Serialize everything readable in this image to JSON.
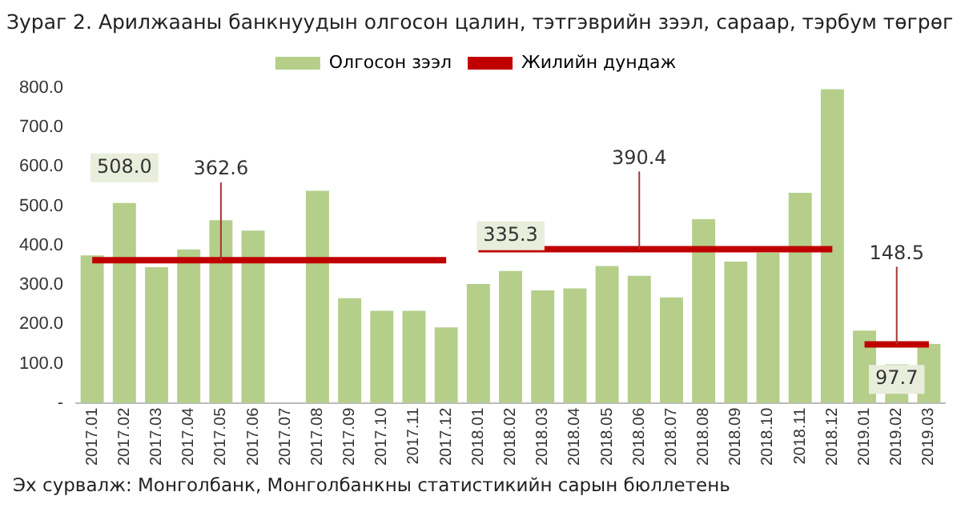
{
  "chart_data": {
    "type": "bar",
    "title": "Зураг 2. Арилжааны банкнуудын олгосон цалин, тэтгэврийн зээл, сараар, тэрбум төгрөг",
    "categories": [
      "2017.01",
      "2017.02",
      "2017.03",
      "2017.04",
      "2017.05",
      "2017.06",
      "2017.07",
      "2017.08",
      "2017.09",
      "2017.10",
      "2017.11",
      "2017.12",
      "2018.01",
      "2018.02",
      "2018.03",
      "2018.04",
      "2018.05",
      "2018.06",
      "2018.07",
      "2018.08",
      "2018.09",
      "2018.10",
      "2018.11",
      "2018.12",
      "2019.01",
      "2019.02",
      "2019.03"
    ],
    "series": [
      {
        "name": "Олгосон зээл",
        "color": "#b5cf8b",
        "values": [
          375,
          508.0,
          345,
          390,
          464,
          438,
          null,
          539,
          266,
          234,
          234,
          192,
          302,
          335.3,
          286,
          291,
          348,
          323,
          268,
          467,
          359,
          382,
          534,
          797,
          184,
          97.7,
          150
        ],
        "value_labels": [
          null,
          "508.0",
          null,
          null,
          null,
          null,
          null,
          null,
          null,
          null,
          null,
          null,
          null,
          "335.3",
          null,
          null,
          null,
          null,
          null,
          null,
          null,
          null,
          null,
          null,
          null,
          "97.7",
          null
        ]
      },
      {
        "name": "Жилийн дундаж",
        "type": "line",
        "color": "#c00000",
        "values": [
          362.6,
          362.6,
          362.6,
          362.6,
          362.6,
          362.6,
          362.6,
          362.6,
          362.6,
          362.6,
          362.6,
          362.6,
          390.4,
          390.4,
          390.4,
          390.4,
          390.4,
          390.4,
          390.4,
          390.4,
          390.4,
          390.4,
          390.4,
          390.4,
          148.5,
          148.5,
          148.5
        ]
      }
    ],
    "ylim": [
      0,
      800
    ],
    "yticks": [
      {
        "value": 0,
        "label": "-"
      },
      {
        "value": 100,
        "label": "100.0"
      },
      {
        "value": 200,
        "label": "200.0"
      },
      {
        "value": 300,
        "label": "300.0"
      },
      {
        "value": 400,
        "label": "400.0"
      },
      {
        "value": 500,
        "label": "500.0"
      },
      {
        "value": 600,
        "label": "600.0"
      },
      {
        "value": 700,
        "label": "700.0"
      },
      {
        "value": 800,
        "label": "800.0"
      }
    ],
    "grid": false,
    "legend": "top",
    "marker": "none",
    "annotations": [
      {
        "text": "362.6",
        "x": "2017.05",
        "y": 362.6
      },
      {
        "text": "390.4",
        "x": "2018.06",
        "y": 390.4
      },
      {
        "text": "148.5",
        "x": "2019.02",
        "y": 148.5
      },
      "Эх сурвалж: Монголбанк, Монголбанкны статистикийн сарын бюллетень"
    ]
  }
}
